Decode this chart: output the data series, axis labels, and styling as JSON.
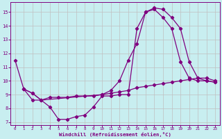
{
  "background_color": "#c8eef0",
  "grid_color": "#c0c0c0",
  "line_color": "#7f007f",
  "marker": "D",
  "markersize": 2.2,
  "linewidth": 0.9,
  "xlabel": "Windchill (Refroidissement éolien,°C)",
  "xlabel_color": "#7f007f",
  "xtick_color": "#7f007f",
  "ytick_color": "#7f007f",
  "xlim": [
    -0.5,
    23.5
  ],
  "ylim": [
    6.8,
    15.7
  ],
  "yticks": [
    7,
    8,
    9,
    10,
    11,
    12,
    13,
    14,
    15
  ],
  "xticks": [
    0,
    1,
    2,
    3,
    4,
    5,
    6,
    7,
    8,
    9,
    10,
    11,
    12,
    13,
    14,
    15,
    16,
    17,
    18,
    19,
    20,
    21,
    22,
    23
  ],
  "line1_x": [
    0,
    1,
    2,
    3,
    4,
    5,
    6,
    7,
    8,
    9,
    10,
    11,
    12,
    13,
    14,
    15,
    16,
    17,
    18,
    19,
    20,
    21,
    22,
    23
  ],
  "line1_y": [
    11.5,
    9.4,
    8.6,
    8.6,
    8.1,
    7.2,
    7.2,
    7.4,
    7.5,
    8.1,
    8.9,
    8.9,
    9.0,
    9.0,
    13.8,
    15.0,
    15.3,
    15.2,
    14.6,
    13.8,
    11.4,
    10.2,
    10.0,
    9.9
  ],
  "line2_x": [
    1,
    2,
    3,
    4,
    5,
    6,
    7,
    8,
    9,
    10,
    11,
    12,
    13,
    14,
    15,
    16,
    17,
    18,
    19,
    20,
    21,
    22,
    23
  ],
  "line2_y": [
    9.4,
    9.1,
    8.6,
    8.8,
    8.8,
    8.8,
    8.9,
    8.9,
    8.9,
    9.0,
    9.1,
    9.2,
    9.3,
    9.5,
    9.6,
    9.7,
    9.8,
    9.9,
    10.0,
    10.1,
    10.2,
    10.2,
    10.0
  ],
  "line3_x": [
    1,
    2,
    3,
    10,
    11,
    12,
    13,
    14,
    15,
    16,
    17,
    18,
    19,
    20,
    21,
    22,
    23
  ],
  "line3_y": [
    9.4,
    9.1,
    8.6,
    9.0,
    9.3,
    10.0,
    11.5,
    12.7,
    15.0,
    15.2,
    14.6,
    13.8,
    11.4,
    10.2,
    10.0,
    10.0,
    9.9
  ]
}
